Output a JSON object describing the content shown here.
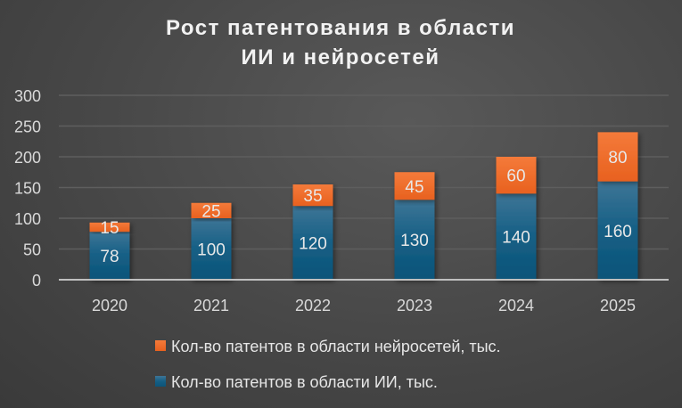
{
  "chart_data": {
    "type": "bar",
    "stacked": true,
    "title": [
      "Рост патентования в области",
      "ИИ и нейросетей"
    ],
    "categories": [
      "2020",
      "2021",
      "2022",
      "2023",
      "2024",
      "2025"
    ],
    "series": [
      {
        "name": "Кол-во патентов в области ИИ, тыс.",
        "values": [
          78,
          100,
          120,
          130,
          140,
          160
        ],
        "color": "#0f5a80"
      },
      {
        "name": "Кол-во патентов в области нейросетей, тыс.",
        "values": [
          15,
          25,
          35,
          45,
          60,
          80
        ],
        "color": "#ee6a27"
      }
    ],
    "yticks": [
      "0",
      "50",
      "100",
      "150",
      "200",
      "250",
      "300"
    ],
    "ylim": [
      0,
      300
    ],
    "grid": true,
    "legend_position": "bottom",
    "data_labels": true
  }
}
